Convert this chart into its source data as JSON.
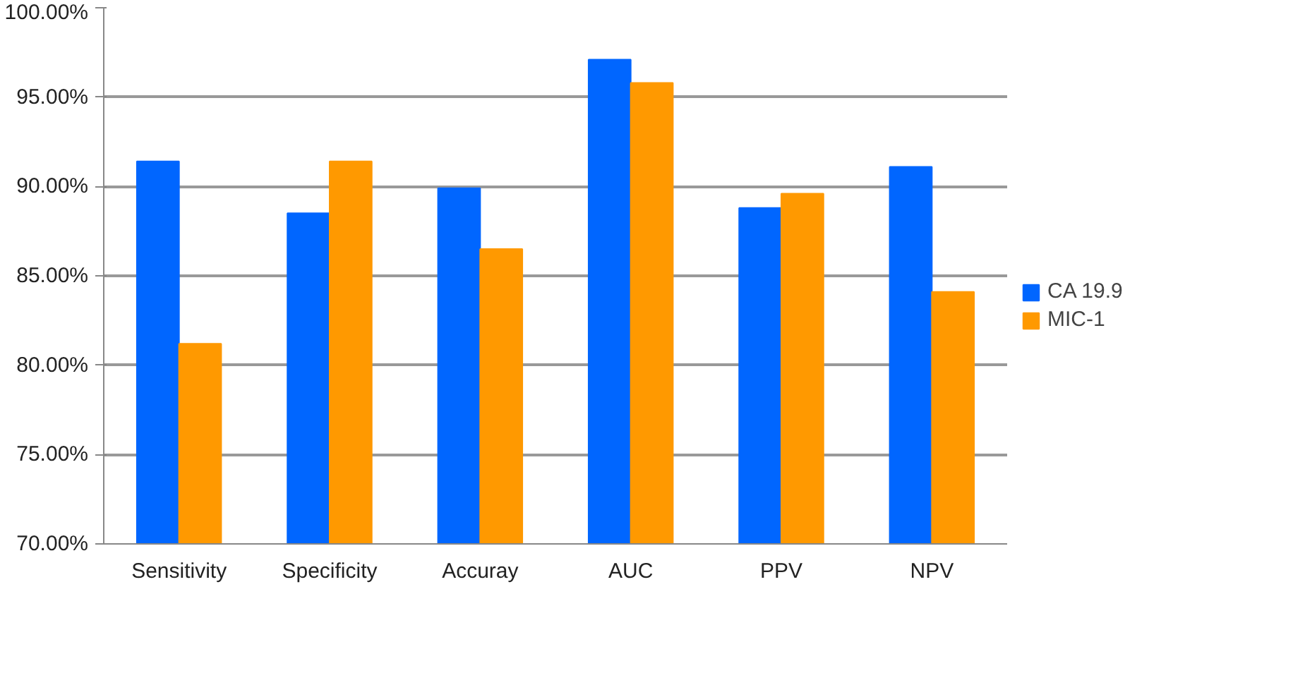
{
  "chart_data": {
    "type": "bar",
    "categories": [
      "Sensitivity",
      "Specificity",
      "Accuray",
      "AUC",
      "PPV",
      "NPV"
    ],
    "series": [
      {
        "name": "CA 19.9",
        "color": "#0066ff",
        "values": [
          91.4,
          88.5,
          89.9,
          97.1,
          88.8,
          91.1
        ]
      },
      {
        "name": "MIC-1",
        "color": "#ff9900",
        "values": [
          81.2,
          91.4,
          86.5,
          95.8,
          89.6,
          84.1
        ]
      }
    ],
    "ylim": [
      70,
      100
    ],
    "yticks": [
      {
        "value": 70,
        "label": "70.00%"
      },
      {
        "value": 75,
        "label": "75.00%"
      },
      {
        "value": 80,
        "label": "80.00%"
      },
      {
        "value": 85,
        "label": "85.00%"
      },
      {
        "value": 90,
        "label": "90.00%"
      },
      {
        "value": 95,
        "label": "95.00%"
      },
      {
        "value": 100,
        "label": "100.00%"
      }
    ],
    "grid": "y",
    "legend": "right"
  }
}
